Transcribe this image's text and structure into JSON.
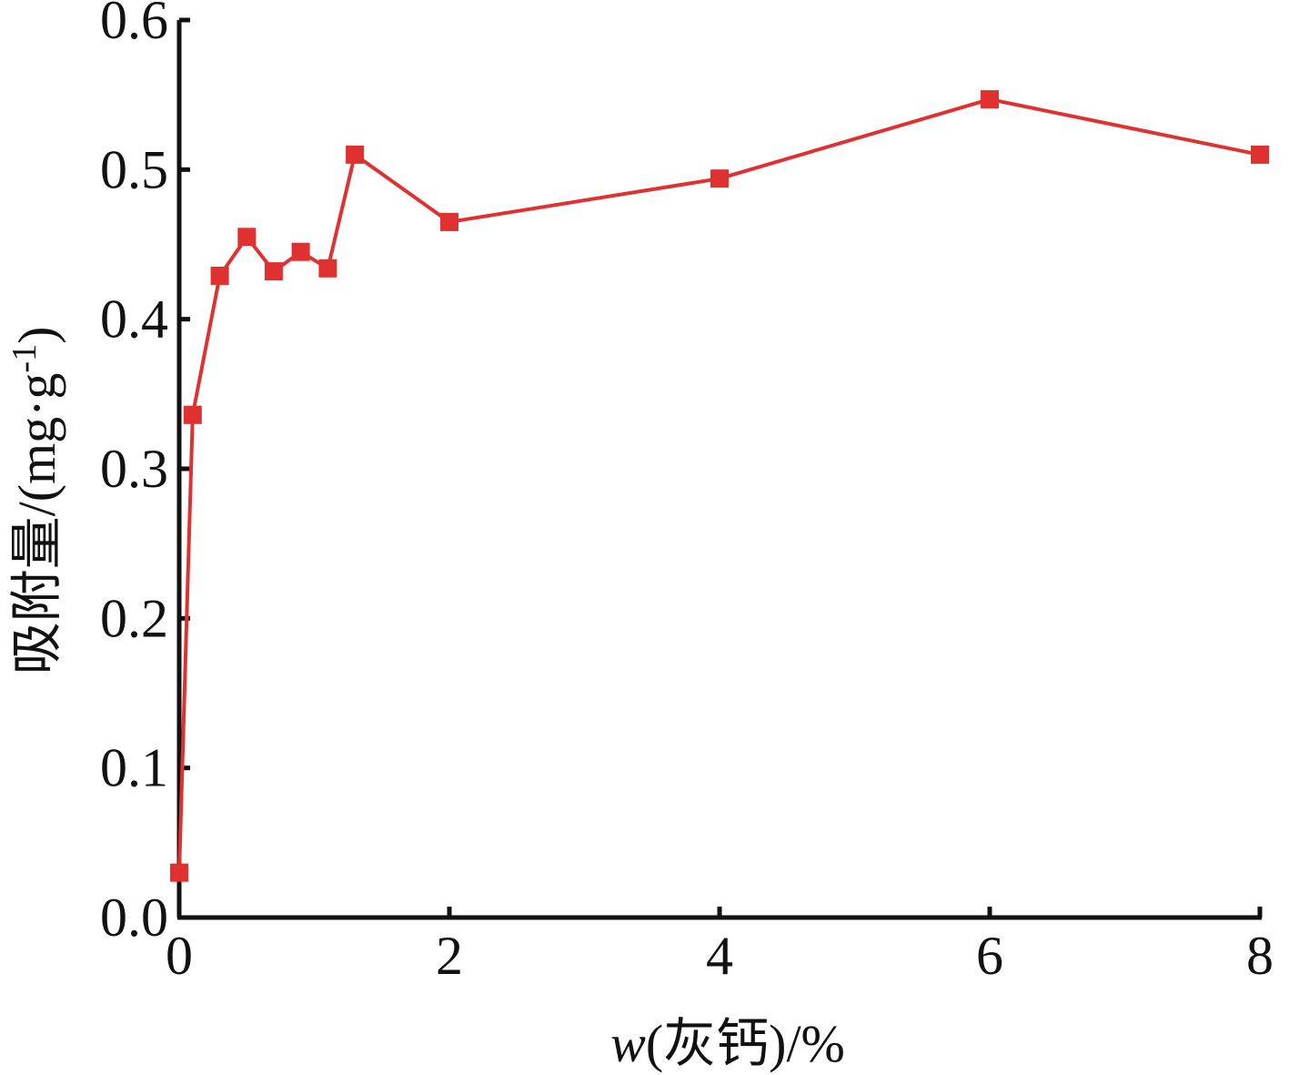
{
  "chart_data": {
    "type": "line",
    "xlabel": {
      "prefix": "w",
      "rest": "(灰钙)/%"
    },
    "ylabel": {
      "main": "吸附量/(mg·g",
      "superscript": "-1",
      "close": ")"
    },
    "xlim": [
      0,
      8
    ],
    "ylim": [
      0,
      0.6
    ],
    "x_ticks": [
      0,
      2,
      4,
      6,
      8
    ],
    "x_tick_labels": [
      "0",
      "2",
      "4",
      "6",
      "8"
    ],
    "y_ticks": [
      0.0,
      0.1,
      0.2,
      0.3,
      0.4,
      0.5,
      0.6
    ],
    "y_tick_labels": [
      "0.0",
      "0.1",
      "0.2",
      "0.3",
      "0.4",
      "0.5",
      "0.6"
    ],
    "grid": false,
    "legend": "none",
    "series": [
      {
        "color": "#e03030",
        "marker": "square",
        "x": [
          0,
          0.1,
          0.3,
          0.5,
          0.7,
          0.9,
          1.1,
          1.3,
          2,
          4,
          6,
          8
        ],
        "y": [
          0.03,
          0.336,
          0.429,
          0.455,
          0.432,
          0.445,
          0.434,
          0.51,
          0.465,
          0.494,
          0.547,
          0.51
        ]
      }
    ]
  }
}
